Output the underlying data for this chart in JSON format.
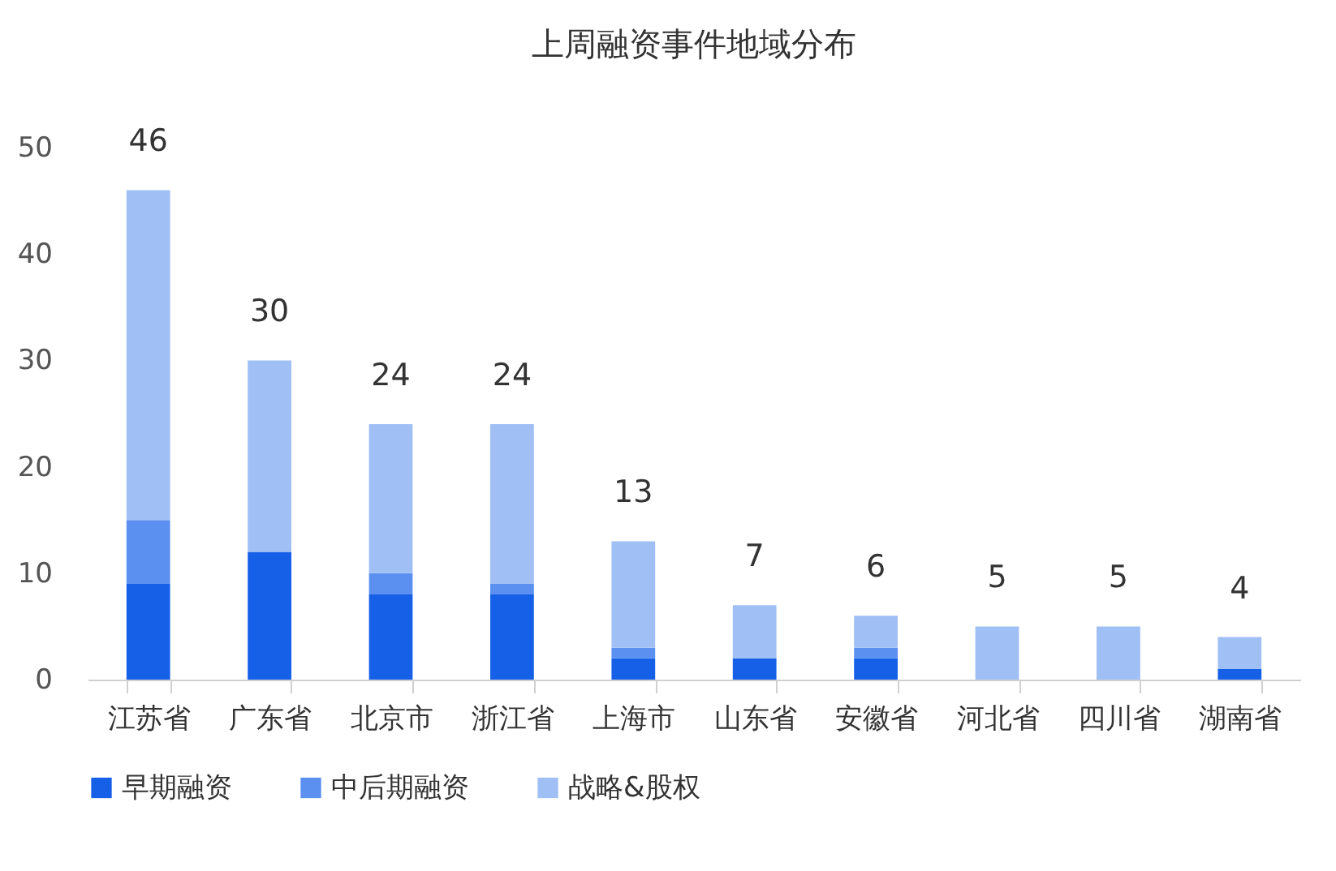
{
  "chart_data": {
    "type": "bar",
    "stacked": true,
    "title": "上周融资事件地域分布",
    "categories": [
      "江苏省",
      "广东省",
      "北京市",
      "浙江省",
      "上海市",
      "山东省",
      "安徽省",
      "河北省",
      "四川省",
      "湖南省"
    ],
    "series": [
      {
        "name": "早期融资",
        "color": "#1660e8",
        "values": [
          9,
          12,
          8,
          8,
          2,
          2,
          2,
          0,
          0,
          1
        ]
      },
      {
        "name": "中后期融资",
        "color": "#5b8ff0",
        "values": [
          6,
          0,
          2,
          1,
          1,
          0,
          1,
          0,
          0,
          0
        ]
      },
      {
        "name": "战略&股权",
        "color": "#a0bff5",
        "values": [
          31,
          18,
          14,
          15,
          10,
          5,
          3,
          5,
          5,
          3
        ]
      }
    ],
    "totals": [
      "46",
      "30",
      "24",
      "24",
      "13",
      "7",
      "6",
      "5",
      "5",
      "4"
    ],
    "ylim": [
      0,
      50
    ],
    "yticks": [
      0,
      10,
      20,
      30,
      40,
      50
    ],
    "grid": false,
    "legend": "bottom"
  }
}
